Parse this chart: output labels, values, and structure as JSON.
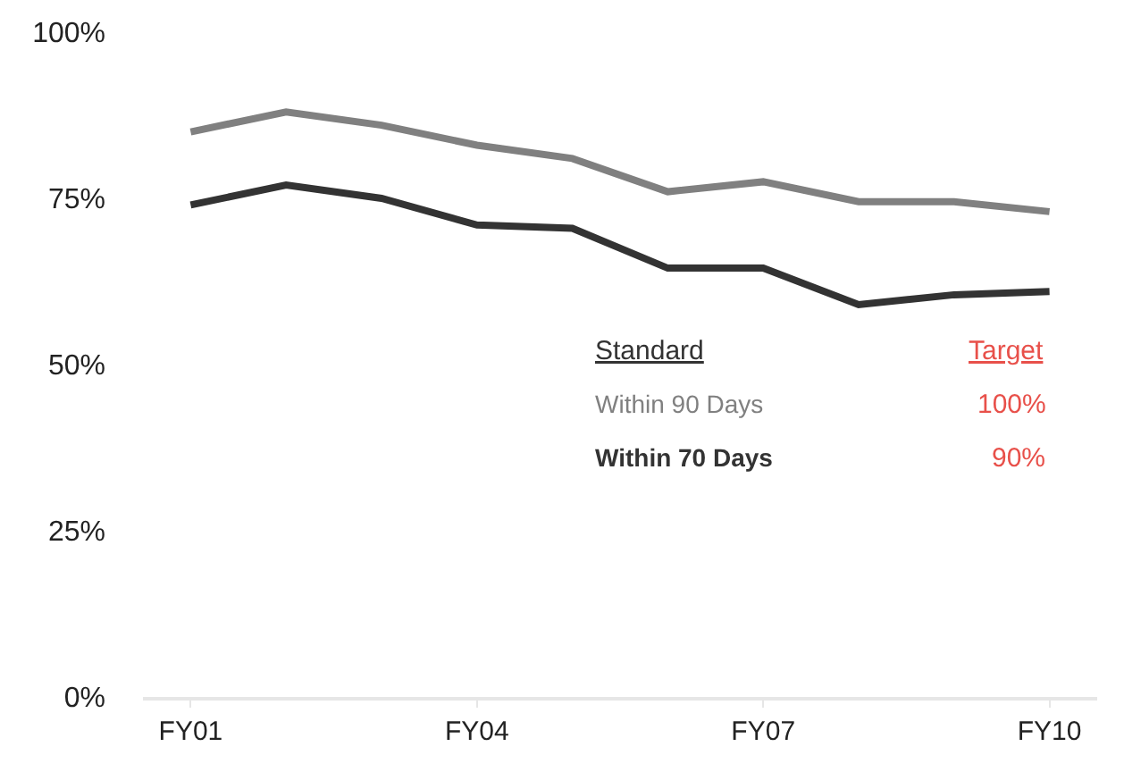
{
  "chart_data": {
    "type": "line",
    "categories": [
      "FY01",
      null,
      null,
      "FY04",
      null,
      null,
      "FY07",
      null,
      null,
      "FY10"
    ],
    "series": [
      {
        "name": "Within 90 Days",
        "color": "#808080",
        "values": [
          85,
          88,
          86,
          83,
          81,
          76,
          77.5,
          74.5,
          74.5,
          73
        ]
      },
      {
        "name": "Within 70 Days",
        "color": "#333333",
        "values": [
          74,
          77,
          75,
          71,
          70.5,
          64.5,
          64.5,
          59,
          60.5,
          61
        ]
      }
    ],
    "ylim": [
      0,
      100
    ],
    "yticks": [
      {
        "value": 0,
        "label": "0%"
      },
      {
        "value": 25,
        "label": "25%"
      },
      {
        "value": 50,
        "label": "50%"
      },
      {
        "value": 75,
        "label": "75%"
      },
      {
        "value": 100,
        "label": "100%"
      }
    ],
    "annotations": [
      "Standard",
      "Target",
      "100%",
      "90%"
    ],
    "legend": false,
    "marker": "none",
    "line_style": "solid"
  }
}
